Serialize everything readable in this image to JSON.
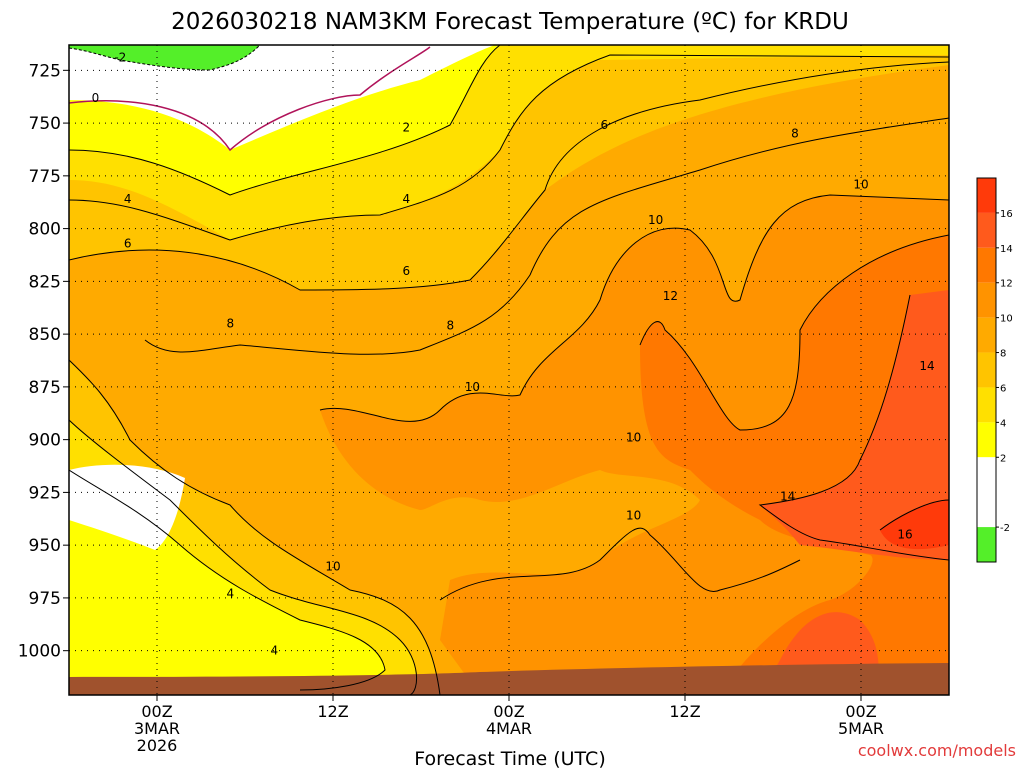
{
  "chart_data": {
    "type": "heatmap",
    "title": "2026030218 NAM3KM Forecast Temperature (ºC) for KRDU",
    "xlabel": "Forecast Time (UTC)",
    "ylabel": "",
    "credit": "coolwx.com/models",
    "y_axis": {
      "scale": "pressure (hPa), increasing downward",
      "ticks": [
        725,
        750,
        775,
        800,
        825,
        850,
        875,
        900,
        925,
        950,
        975,
        1000
      ],
      "tick_labels": [
        "725",
        "750",
        "775",
        "800",
        "825",
        "850",
        "875",
        "900",
        "925",
        "950",
        "975",
        "1000"
      ],
      "range": [
        713,
        1021
      ]
    },
    "x_axis": {
      "range_hours_from_3MAR_00Z": [
        -6,
        54
      ],
      "ticks": [
        {
          "hour": 0,
          "lines": [
            "00Z",
            "3MAR",
            "2026"
          ]
        },
        {
          "hour": 12,
          "lines": [
            "12Z"
          ]
        },
        {
          "hour": 24,
          "lines": [
            "00Z",
            "4MAR"
          ]
        },
        {
          "hour": 36,
          "lines": [
            "12Z"
          ]
        },
        {
          "hour": 48,
          "lines": [
            "00Z",
            "5MAR"
          ]
        }
      ]
    },
    "grid": true,
    "colorbar": {
      "position": "right",
      "bins": [
        {
          "from": -4,
          "to": -2,
          "color": "#54ef29"
        },
        {
          "from": -2,
          "to": 0,
          "color": "#ffffff"
        },
        {
          "from": 0,
          "to": 2,
          "color": "#ffffff"
        },
        {
          "from": 2,
          "to": 4,
          "color": "#ffff00"
        },
        {
          "from": 4,
          "to": 6,
          "color": "#ffe000"
        },
        {
          "from": 6,
          "to": 8,
          "color": "#ffc400"
        },
        {
          "from": 8,
          "to": 10,
          "color": "#ffaa00"
        },
        {
          "from": 10,
          "to": 12,
          "color": "#ff9300"
        },
        {
          "from": 12,
          "to": 14,
          "color": "#ff7800"
        },
        {
          "from": 14,
          "to": 16,
          "color": "#ff5a1c"
        },
        {
          "from": 16,
          "to": 18,
          "color": "#ff3a0a"
        }
      ],
      "labels": [
        "-2",
        "2",
        "4",
        "6",
        "8",
        "10",
        "12",
        "14",
        "16"
      ]
    },
    "ground_color": "#a0522d",
    "contour_labels": [
      {
        "text": "-2",
        "hour": -2.5,
        "p": 719
      },
      {
        "text": "0",
        "hour": -4.2,
        "p": 738
      },
      {
        "text": "2",
        "hour": 17,
        "p": 752
      },
      {
        "text": "4",
        "hour": -2,
        "p": 786
      },
      {
        "text": "4",
        "hour": 17,
        "p": 786
      },
      {
        "text": "6",
        "hour": -2,
        "p": 807
      },
      {
        "text": "6",
        "hour": 17,
        "p": 820
      },
      {
        "text": "6",
        "hour": 30.5,
        "p": 751
      },
      {
        "text": "8",
        "hour": 5,
        "p": 845
      },
      {
        "text": "8",
        "hour": 20,
        "p": 846
      },
      {
        "text": "8",
        "hour": 43.5,
        "p": 755
      },
      {
        "text": "10",
        "hour": 12,
        "p": 960
      },
      {
        "text": "10",
        "hour": 34,
        "p": 796
      },
      {
        "text": "10",
        "hour": 48,
        "p": 779
      },
      {
        "text": "10",
        "hour": 21.5,
        "p": 875
      },
      {
        "text": "10",
        "hour": 32.5,
        "p": 899
      },
      {
        "text": "10",
        "hour": 32.5,
        "p": 936
      },
      {
        "text": "12",
        "hour": 35,
        "p": 832
      },
      {
        "text": "14",
        "hour": 52.5,
        "p": 865
      },
      {
        "text": "14",
        "hour": 43,
        "p": 927
      },
      {
        "text": "16",
        "hour": 51,
        "p": 945
      },
      {
        "text": "4",
        "hour": 5,
        "p": 973
      },
      {
        "text": "4",
        "hour": 8,
        "p": 1000
      }
    ]
  }
}
